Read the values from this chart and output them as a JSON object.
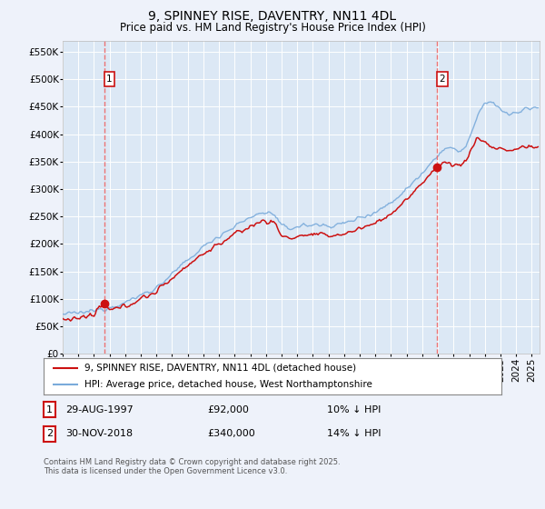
{
  "title": "9, SPINNEY RISE, DAVENTRY, NN11 4DL",
  "subtitle": "Price paid vs. HM Land Registry's House Price Index (HPI)",
  "ylim": [
    0,
    570000
  ],
  "yticks": [
    0,
    50000,
    100000,
    150000,
    200000,
    250000,
    300000,
    350000,
    400000,
    450000,
    500000,
    550000
  ],
  "xlim_start": 1995.25,
  "xlim_end": 2025.5,
  "bg_color": "#eef2fa",
  "plot_bg_color": "#dce8f5",
  "grid_color": "#ffffff",
  "hpi_color": "#7aabdb",
  "price_color": "#cc1111",
  "vline_color": "#ee6666",
  "sale1_date": 1997.65,
  "sale1_price": 92000,
  "sale1_label": "1",
  "sale2_date": 2018.92,
  "sale2_price": 340000,
  "sale2_label": "2",
  "legend_line1": "9, SPINNEY RISE, DAVENTRY, NN11 4DL (detached house)",
  "legend_line2": "HPI: Average price, detached house, West Northamptonshire",
  "table_row1": [
    "1",
    "29-AUG-1997",
    "£92,000",
    "10% ↓ HPI"
  ],
  "table_row2": [
    "2",
    "30-NOV-2018",
    "£340,000",
    "14% ↓ HPI"
  ],
  "footer": "Contains HM Land Registry data © Crown copyright and database right 2025.\nThis data is licensed under the Open Government Licence v3.0.",
  "title_fontsize": 10,
  "subtitle_fontsize": 8.5,
  "tick_fontsize": 7.5,
  "legend_fontsize": 8
}
